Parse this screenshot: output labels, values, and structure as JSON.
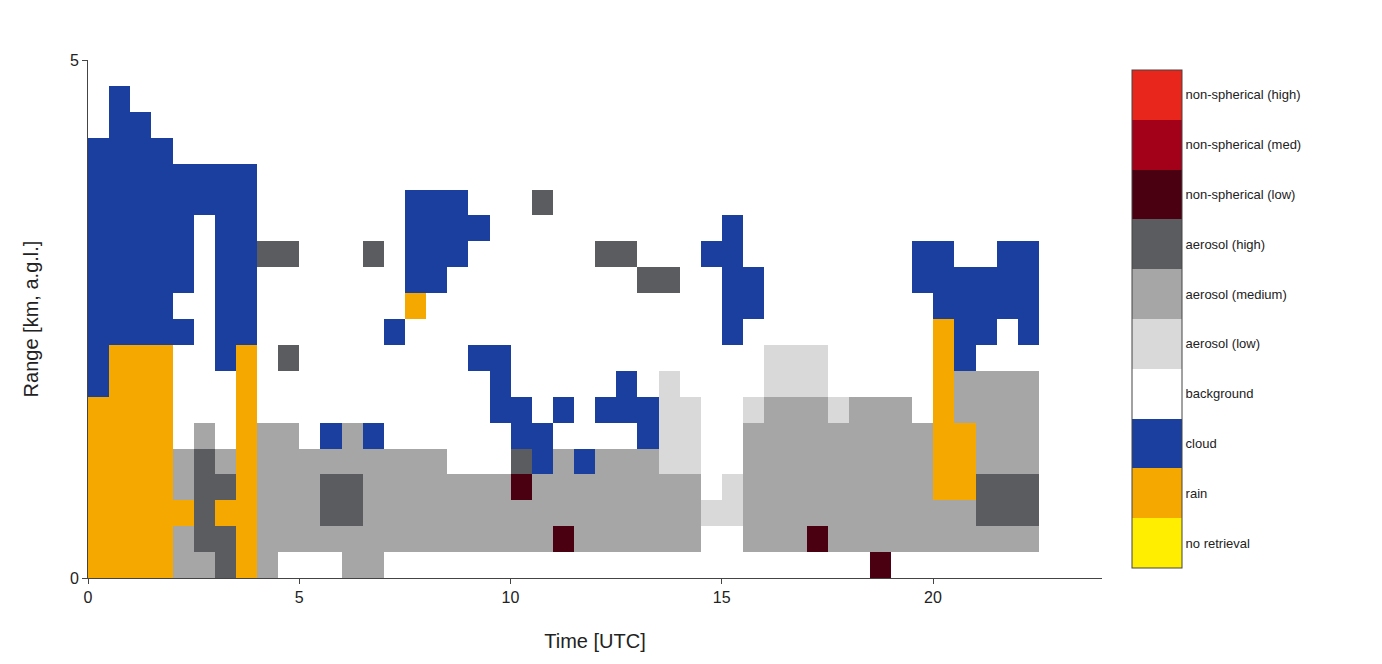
{
  "chart_data": {
    "type": "heatmap",
    "x_label": "Time [UTC]",
    "y_label": "Range [km, a.g.l.]",
    "xlim": [
      0,
      24
    ],
    "xticks": [
      0,
      5,
      10,
      15,
      20
    ],
    "ylim": [
      0,
      5
    ],
    "yticks": [
      0,
      5
    ],
    "x": [
      0.25,
      0.75,
      1.25,
      1.75,
      2.25,
      2.75,
      3.25,
      3.75,
      4.25,
      4.75,
      5.25,
      5.75,
      6.25,
      6.75,
      7.25,
      7.75,
      8.25,
      8.75,
      9.25,
      9.75,
      10.25,
      10.75,
      11.25,
      11.75,
      12.25,
      12.75,
      13.25,
      13.75,
      14.25,
      14.75,
      15.25,
      15.75,
      16.25,
      16.75,
      17.25,
      17.75,
      18.25,
      18.75,
      19.25,
      19.75,
      20.25,
      20.75,
      21.25,
      21.75,
      22.25
    ],
    "y": [
      0.125,
      0.375,
      0.625,
      0.875,
      1.125,
      1.375,
      1.625,
      1.875,
      2.125,
      2.375,
      2.625,
      2.875,
      3.125,
      3.375,
      3.625,
      3.875,
      4.125,
      4.375,
      4.625,
      4.875
    ],
    "z": [
      [
        1,
        1,
        1,
        1,
        1,
        1,
        1,
        2,
        2,
        2,
        2,
        2,
        2,
        2,
        2,
        2,
        2,
        3,
        3,
        3
      ],
      [
        1,
        1,
        1,
        1,
        1,
        1,
        1,
        1,
        1,
        2,
        2,
        2,
        2,
        2,
        2,
        2,
        2,
        2,
        2,
        3
      ],
      [
        1,
        1,
        1,
        1,
        1,
        1,
        1,
        1,
        1,
        2,
        2,
        2,
        2,
        2,
        2,
        2,
        2,
        2,
        3,
        3
      ],
      [
        1,
        1,
        1,
        1,
        1,
        1,
        1,
        1,
        1,
        2,
        2,
        2,
        2,
        2,
        2,
        2,
        2,
        3,
        3,
        3
      ],
      [
        5,
        5,
        1,
        5,
        5,
        3,
        3,
        3,
        3,
        2,
        3,
        2,
        2,
        2,
        2,
        2,
        3,
        3,
        3,
        3
      ],
      [
        5,
        6,
        6,
        6,
        6,
        5,
        3,
        3,
        3,
        3,
        3,
        3,
        3,
        3,
        2,
        2,
        3,
        3,
        3,
        3
      ],
      [
        6,
        6,
        1,
        6,
        5,
        3,
        3,
        3,
        2,
        2,
        2,
        2,
        2,
        2,
        2,
        2,
        3,
        3,
        3,
        3
      ],
      [
        1,
        1,
        1,
        1,
        1,
        1,
        1,
        1,
        1,
        2,
        2,
        2,
        2,
        2,
        2,
        2,
        3,
        3,
        3,
        3
      ],
      [
        5,
        5,
        5,
        5,
        5,
        5,
        3,
        3,
        3,
        3,
        3,
        3,
        6,
        3,
        3,
        3,
        3,
        3,
        3,
        3
      ],
      [
        3,
        5,
        5,
        5,
        5,
        5,
        3,
        3,
        6,
        3,
        3,
        3,
        6,
        3,
        3,
        3,
        3,
        3,
        3,
        3
      ],
      [
        3,
        5,
        5,
        5,
        5,
        3,
        3,
        3,
        3,
        3,
        3,
        3,
        3,
        3,
        3,
        3,
        3,
        3,
        3,
        3
      ],
      [
        3,
        5,
        6,
        6,
        5,
        2,
        3,
        3,
        3,
        3,
        3,
        3,
        3,
        3,
        3,
        3,
        3,
        3,
        3,
        3
      ],
      [
        5,
        5,
        6,
        6,
        5,
        5,
        3,
        3,
        3,
        3,
        3,
        3,
        3,
        3,
        3,
        3,
        3,
        3,
        3,
        3
      ],
      [
        5,
        5,
        5,
        5,
        5,
        2,
        3,
        3,
        3,
        3,
        3,
        3,
        6,
        3,
        3,
        3,
        3,
        3,
        3,
        3
      ],
      [
        3,
        5,
        5,
        5,
        5,
        3,
        3,
        3,
        3,
        2,
        3,
        3,
        3,
        3,
        3,
        3,
        3,
        3,
        3,
        3
      ],
      [
        3,
        5,
        5,
        5,
        5,
        3,
        3,
        3,
        3,
        3,
        1,
        2,
        2,
        2,
        2,
        3,
        3,
        3,
        3,
        3
      ],
      [
        3,
        5,
        5,
        5,
        5,
        3,
        3,
        3,
        3,
        3,
        3,
        2,
        2,
        2,
        2,
        3,
        3,
        3,
        3,
        3
      ],
      [
        3,
        5,
        5,
        5,
        3,
        3,
        3,
        3,
        3,
        3,
        3,
        3,
        2,
        2,
        2,
        3,
        3,
        3,
        3,
        3
      ],
      [
        3,
        5,
        5,
        5,
        3,
        3,
        3,
        3,
        2,
        3,
        3,
        3,
        3,
        2,
        3,
        3,
        3,
        3,
        3,
        3
      ],
      [
        3,
        5,
        5,
        5,
        3,
        3,
        2,
        2,
        2,
        3,
        3,
        3,
        3,
        3,
        3,
        3,
        3,
        3,
        3,
        3
      ],
      [
        3,
        5,
        5,
        7,
        6,
        2,
        2,
        3,
        3,
        3,
        3,
        3,
        3,
        3,
        3,
        3,
        3,
        3,
        3,
        3
      ],
      [
        3,
        5,
        5,
        5,
        2,
        2,
        3,
        3,
        3,
        3,
        3,
        3,
        3,
        3,
        6,
        3,
        3,
        3,
        3,
        3
      ],
      [
        3,
        7,
        5,
        5,
        5,
        3,
        2,
        3,
        3,
        3,
        3,
        3,
        3,
        3,
        3,
        3,
        3,
        3,
        3,
        3
      ],
      [
        3,
        5,
        5,
        5,
        2,
        3,
        3,
        3,
        3,
        3,
        3,
        3,
        3,
        3,
        3,
        3,
        3,
        3,
        3,
        3
      ],
      [
        3,
        5,
        5,
        5,
        5,
        3,
        2,
        3,
        3,
        3,
        3,
        3,
        6,
        3,
        3,
        3,
        3,
        3,
        3,
        3
      ],
      [
        3,
        5,
        5,
        5,
        5,
        3,
        2,
        2,
        3,
        3,
        3,
        3,
        6,
        3,
        3,
        3,
        3,
        3,
        3,
        3
      ],
      [
        3,
        5,
        5,
        5,
        5,
        2,
        2,
        3,
        3,
        3,
        3,
        6,
        3,
        3,
        3,
        3,
        3,
        3,
        3,
        3
      ],
      [
        3,
        5,
        5,
        5,
        4,
        4,
        4,
        4,
        3,
        3,
        3,
        6,
        3,
        3,
        3,
        3,
        3,
        3,
        3,
        3
      ],
      [
        3,
        5,
        5,
        5,
        4,
        4,
        4,
        3,
        3,
        3,
        3,
        3,
        3,
        3,
        3,
        3,
        3,
        3,
        3,
        3
      ],
      [
        3,
        3,
        4,
        3,
        3,
        3,
        3,
        3,
        3,
        3,
        3,
        3,
        2,
        3,
        3,
        3,
        3,
        3,
        3,
        3
      ],
      [
        3,
        3,
        4,
        4,
        3,
        3,
        3,
        3,
        3,
        2,
        2,
        2,
        2,
        2,
        3,
        3,
        3,
        3,
        3,
        3
      ],
      [
        3,
        5,
        5,
        5,
        5,
        5,
        4,
        3,
        3,
        3,
        2,
        2,
        3,
        3,
        3,
        3,
        3,
        3,
        3,
        3
      ],
      [
        3,
        5,
        5,
        5,
        5,
        5,
        5,
        4,
        4,
        3,
        3,
        3,
        3,
        3,
        3,
        3,
        3,
        3,
        3,
        3
      ],
      [
        3,
        5,
        5,
        5,
        5,
        5,
        5,
        4,
        4,
        3,
        3,
        3,
        3,
        3,
        3,
        3,
        3,
        3,
        3,
        3
      ],
      [
        3,
        7,
        5,
        5,
        5,
        5,
        5,
        4,
        4,
        3,
        3,
        3,
        3,
        3,
        3,
        3,
        3,
        3,
        3,
        3
      ],
      [
        3,
        5,
        5,
        5,
        5,
        5,
        4,
        3,
        3,
        3,
        3,
        3,
        3,
        3,
        3,
        3,
        3,
        3,
        3,
        3
      ],
      [
        3,
        5,
        5,
        5,
        5,
        5,
        5,
        3,
        3,
        3,
        3,
        3,
        3,
        3,
        3,
        3,
        3,
        3,
        3,
        3
      ],
      [
        7,
        5,
        5,
        5,
        5,
        5,
        5,
        3,
        3,
        3,
        3,
        3,
        3,
        3,
        3,
        3,
        3,
        3,
        3,
        3
      ],
      [
        3,
        5,
        5,
        5,
        5,
        5,
        5,
        3,
        3,
        3,
        3,
        3,
        3,
        3,
        3,
        3,
        3,
        3,
        3,
        3
      ],
      [
        3,
        5,
        5,
        5,
        5,
        5,
        3,
        3,
        3,
        3,
        3,
        2,
        2,
        3,
        3,
        3,
        3,
        3,
        3,
        3
      ],
      [
        3,
        5,
        5,
        1,
        1,
        1,
        1,
        1,
        1,
        1,
        2,
        2,
        2,
        3,
        3,
        3,
        3,
        3,
        3,
        3
      ],
      [
        3,
        5,
        5,
        1,
        1,
        1,
        5,
        5,
        2,
        2,
        2,
        2,
        3,
        3,
        3,
        3,
        3,
        3,
        3,
        3
      ],
      [
        3,
        5,
        6,
        6,
        5,
        5,
        5,
        5,
        3,
        2,
        2,
        2,
        3,
        3,
        3,
        3,
        3,
        3,
        3,
        3
      ],
      [
        3,
        5,
        6,
        6,
        5,
        5,
        5,
        5,
        3,
        3,
        2,
        2,
        2,
        3,
        3,
        3,
        3,
        3,
        3,
        3
      ],
      [
        3,
        5,
        6,
        6,
        5,
        5,
        5,
        5,
        3,
        2,
        2,
        2,
        2,
        3,
        3,
        3,
        3,
        3,
        3,
        3
      ]
    ],
    "colorbar": {
      "range": [
        -0.5,
        9.5
      ],
      "ticks": [
        {
          "value": 0,
          "label": "no retrieval"
        },
        {
          "value": 1,
          "label": "rain"
        },
        {
          "value": 2,
          "label": "cloud"
        },
        {
          "value": 3,
          "label": "background"
        },
        {
          "value": 4,
          "label": "aerosol (low)"
        },
        {
          "value": 5,
          "label": "aerosol (medium)"
        },
        {
          "value": 6,
          "label": "aerosol (high)"
        },
        {
          "value": 7,
          "label": "non-spherical (low)"
        },
        {
          "value": 8,
          "label": "non-spherical (med)"
        },
        {
          "value": 9,
          "label": "non-spherical (high)"
        }
      ],
      "colors": [
        "#ffee00",
        "#f5a800",
        "#1b3f9e",
        "#ffffff",
        "#d9d9d9",
        "#a6a6a6",
        "#5a5c60",
        "#4a0010",
        "#a3001a",
        "#e8261c"
      ]
    }
  }
}
